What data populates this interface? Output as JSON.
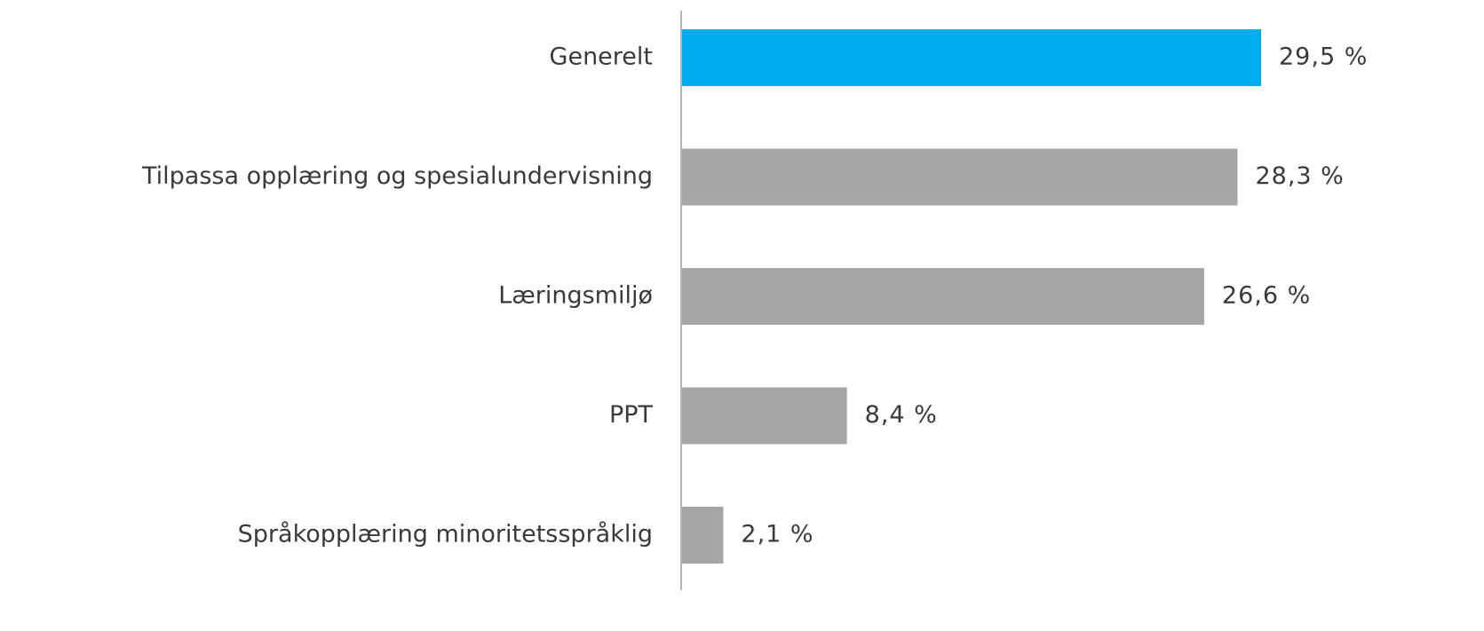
{
  "chart_data": {
    "type": "bar",
    "orientation": "horizontal",
    "categories": [
      "Generelt",
      "Tilpassa opplæring og spesialundervisning",
      "Læringsmiljø",
      "PPT",
      "Språkopplæring minoritetsspråklig"
    ],
    "values": [
      29.5,
      28.3,
      26.6,
      8.4,
      2.1
    ],
    "value_labels": [
      "29,5 %",
      "28,3 %",
      "26,6 %",
      "8,4 %",
      "2,1 %"
    ],
    "colors": [
      "#00aeef",
      "#a6a6a6",
      "#a6a6a6",
      "#a6a6a6",
      "#a6a6a6"
    ]
  }
}
